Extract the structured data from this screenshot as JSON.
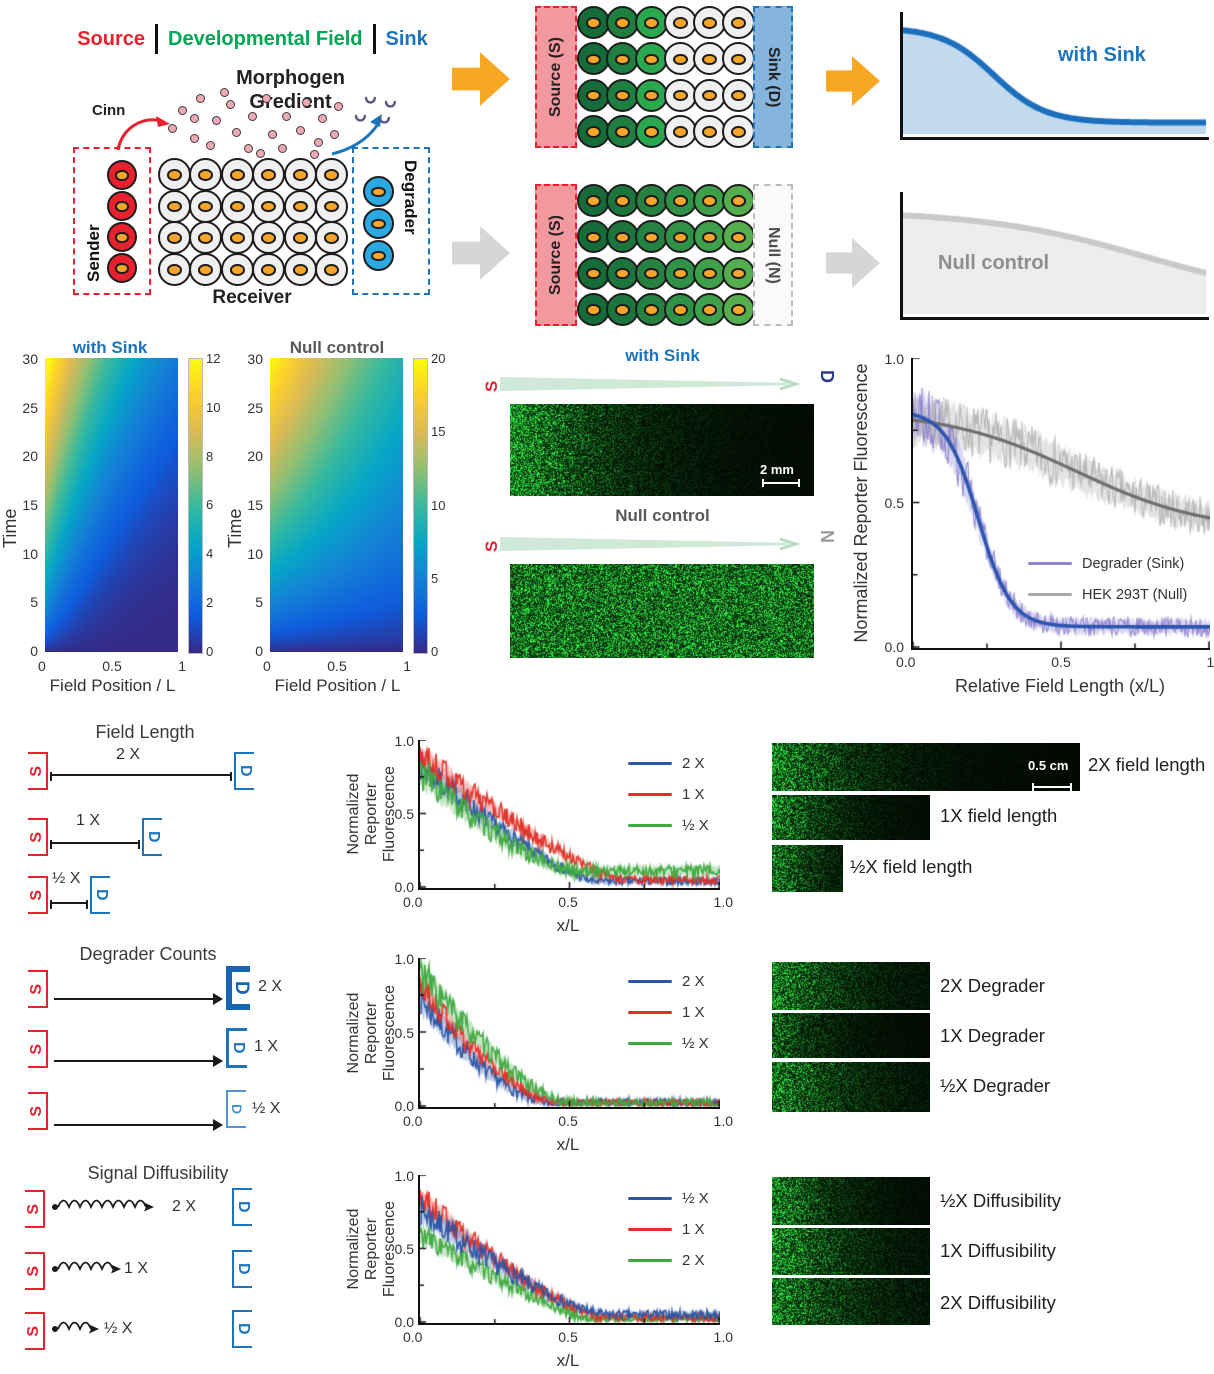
{
  "colors": {
    "source_red": "#e8212e",
    "field_green": "#00a651",
    "sink_blue": "#1c75bc",
    "navy_d": "#2b3a8f",
    "null_gray": "#97999b",
    "null_text": "#58595b",
    "yellow_arrow": "#f7a823",
    "gray_arrow": "#d6d6d6",
    "cell_gray": "#f0f0f1",
    "nucleus_orange": "#f6a62a",
    "degrader_cell_blue": "#29a8e1",
    "source_bar_pink": "#f2989f",
    "sink_bar_blue": "#85b4dc",
    "taper_green": "#cfe8d8",
    "grid1_columns": [
      "#166c39",
      "#1f7f41",
      "#2aa84e",
      "#f0f0f1",
      "#f0f0f1",
      "#f0f0f1"
    ],
    "grid2_columns": [
      "#166c39",
      "#1c753c",
      "#258240",
      "#2f9246",
      "#3fa04b",
      "#55ae4e"
    ],
    "parula": [
      "#352a87",
      "#0f5cdd",
      "#1481d6",
      "#06a7c6",
      "#38b99e",
      "#92bf73",
      "#d9ba56",
      "#fcce2e",
      "#f9fb0e"
    ]
  },
  "schematic": {
    "header": {
      "source": "Source",
      "divider": "|",
      "field": "Developmental Field",
      "sink": "Sink"
    },
    "morphogen_line1": "Morphogen",
    "morphogen_line2": "Gredient",
    "cinn": "Cinn",
    "sender": "Sender",
    "receiver": "Receiver",
    "degrader": "Degrader"
  },
  "grids": {
    "top_left": "Source (S)",
    "top_right": "Sink (D)",
    "bottom_left": "Source (S)",
    "bottom_right": "Null (N)"
  },
  "microscopy": {
    "top_title": "with Sink",
    "bottom_title": "Null control",
    "s": "S",
    "d": "D",
    "n": "N",
    "scalebar": "2 mm"
  },
  "chart_data": [
    {
      "id": "sketch-sink",
      "el": "cv-sketch1",
      "type": "line",
      "title": "with Sink",
      "color": "#1b6fbd",
      "fill": "#c3d9ee",
      "curve": {
        "kind": "sigmoid",
        "base": 0.05,
        "amp": 0.88,
        "mid": 0.3,
        "width": 0.085
      },
      "line_width": 6
    },
    {
      "id": "sketch-null",
      "el": "cv-sketch2",
      "type": "line",
      "title": "Null control",
      "color": "#c9c9c9",
      "fill": "#ededed",
      "curve": {
        "kind": "sigmoid",
        "base": 0.05,
        "amp": 0.85,
        "mid": 0.8,
        "width": 0.27
      },
      "line_width": 6
    },
    {
      "id": "heatmap-sink",
      "el": "cv-hm1",
      "cbar_el": "cv-cb1",
      "type": "heatmap",
      "title": "with Sink",
      "xlabel": "Field Position / L",
      "ylabel": "Time",
      "xticks": [
        "0",
        "0.5",
        "1"
      ],
      "yticks": [
        "0",
        "5",
        "10",
        "15",
        "20",
        "25",
        "30"
      ],
      "cbar_ticks": [
        "0",
        "2",
        "4",
        "6",
        "8",
        "10",
        "12"
      ],
      "xlim": [
        0,
        1
      ],
      "ylim": [
        0,
        30
      ],
      "clim": [
        0,
        12.5
      ],
      "model": {
        "kind": "sink",
        "umax": 13,
        "lam0": 0.16,
        "lam1": 0.5,
        "tpow": 0.7
      }
    },
    {
      "id": "heatmap-null",
      "el": "cv-hm2",
      "cbar_el": "cv-cb2",
      "type": "heatmap",
      "title": "Null control",
      "xlabel": "Field Position / L",
      "ylabel": "Time",
      "xticks": [
        "0",
        "0.5",
        "1"
      ],
      "yticks": [
        "0",
        "5",
        "10",
        "15",
        "20",
        "25",
        "30"
      ],
      "cbar_ticks": [
        "0",
        "5",
        "10",
        "15",
        "20"
      ],
      "xlim": [
        0,
        1
      ],
      "ylim": [
        0,
        30
      ],
      "clim": [
        0,
        20
      ],
      "model": {
        "kind": "null",
        "umax": 20,
        "dec": 0.8,
        "tpow": 0.75
      }
    },
    {
      "id": "main-plot",
      "el": "cv-main",
      "type": "line",
      "xlabel": "Relative Field Length (x/L)",
      "ylabel": "Normalized Reporter Fluorescence",
      "xticks": [
        "0.0",
        "0.5",
        "1.0"
      ],
      "yticks": [
        "1.0",
        "0.5",
        "0.0"
      ],
      "xlim": [
        0,
        1
      ],
      "ylim": [
        0,
        1
      ],
      "legend_position": "center-right",
      "series": [
        {
          "name": "HEK 293T (Null)",
          "color": "#6f6f6f",
          "trace_color": "#b5b5b5",
          "band_color": "#c8c8c8",
          "band_alpha": 0.5,
          "curve": {
            "kind": "sigmoid",
            "base": 0.4,
            "amp": 0.42,
            "mid": 0.55,
            "width": 0.22
          },
          "noise": 0.05,
          "band": 0.1,
          "line_width": 3.2
        },
        {
          "name": "Degrader (Sink)",
          "color": "#2c55b0",
          "trace_color": "#8d86cf",
          "band_color": "#a49ede",
          "band_alpha": 0.42,
          "curve": {
            "kind": "sigmoid",
            "base": 0.07,
            "amp": 0.75,
            "mid": 0.22,
            "width": 0.055
          },
          "noise": 0.055,
          "band": 0.11,
          "line_width": 3.6
        }
      ],
      "legend": [
        {
          "label": "Degrader (Sink)",
          "swatch": "#8d86cf"
        },
        {
          "label": "HEK 293T (Null)",
          "swatch": "#a9a9a9"
        }
      ]
    },
    {
      "id": "plot-field-length",
      "el": "cv-p1",
      "type": "line",
      "xlabel": "x/L",
      "ylabel_lines": [
        "Normalized",
        "Reporter",
        "Fluorescence"
      ],
      "xticks": [
        "0.0",
        "0.5",
        "1.0"
      ],
      "yticks": [
        "1.0",
        "0.5",
        "0.0"
      ],
      "xlim": [
        0,
        1
      ],
      "ylim": [
        0,
        1
      ],
      "series": [
        {
          "name": "2 X",
          "color": "#2b55a5",
          "curve": {
            "kind": "power",
            "floor": 0.04,
            "amp": 0.8,
            "x0": 0.58,
            "p": 1.3
          },
          "noise": 0.05,
          "band": 0.11
        },
        {
          "name": "1 X",
          "color": "#e03127",
          "curve": {
            "kind": "power",
            "floor": 0.05,
            "amp": 0.85,
            "x0": 0.66,
            "p": 1.2
          },
          "noise": 0.05,
          "band": 0.09
        },
        {
          "name": "½ X",
          "color": "#3faa3f",
          "curve": {
            "kind": "power",
            "floor": 0.11,
            "amp": 0.68,
            "x0": 0.52,
            "p": 1.5
          },
          "noise": 0.06,
          "band": 0.13
        }
      ]
    },
    {
      "id": "plot-degrader-counts",
      "el": "cv-p2",
      "type": "line",
      "xlabel": "x/L",
      "ylabel_lines": [
        "Normalized",
        "Reporter",
        "Fluorescence"
      ],
      "xticks": [
        "0.0",
        "0.5",
        "1.0"
      ],
      "yticks": [
        "1.0",
        "0.5",
        "0.0"
      ],
      "xlim": [
        0,
        1
      ],
      "ylim": [
        0,
        1
      ],
      "series": [
        {
          "name": "2 X",
          "color": "#2b55a5",
          "curve": {
            "kind": "power",
            "floor": 0.02,
            "amp": 0.72,
            "x0": 0.44,
            "p": 1.7
          },
          "noise": 0.06,
          "band": 0.14
        },
        {
          "name": "1 X",
          "color": "#e03127",
          "curve": {
            "kind": "power",
            "floor": 0.02,
            "amp": 0.8,
            "x0": 0.47,
            "p": 1.6
          },
          "noise": 0.05,
          "band": 0.09
        },
        {
          "name": "½ X",
          "color": "#3faa3f",
          "curve": {
            "kind": "power",
            "floor": 0.02,
            "amp": 0.9,
            "x0": 0.5,
            "p": 1.5
          },
          "noise": 0.06,
          "band": 0.12
        }
      ]
    },
    {
      "id": "plot-diffusibility",
      "el": "cv-p3",
      "type": "line",
      "xlabel": "x/L",
      "ylabel_lines": [
        "Normalized",
        "Reporter",
        "Fluorescence"
      ],
      "xticks": [
        "0.0",
        "0.5",
        "1.0"
      ],
      "yticks": [
        "1.0",
        "0.5",
        "0.0"
      ],
      "xlim": [
        0,
        1
      ],
      "ylim": [
        0,
        1
      ],
      "draw_order": [
        2,
        1,
        0
      ],
      "series": [
        {
          "name": "½ X",
          "color": "#2b55a5",
          "curve": {
            "kind": "power",
            "floor": 0.05,
            "amp": 0.72,
            "x0": 0.62,
            "p": 1.4
          },
          "noise": 0.055,
          "band": 0.12
        },
        {
          "name": "1 X",
          "color": "#e03127",
          "curve": {
            "kind": "power",
            "floor": 0.03,
            "amp": 0.82,
            "x0": 0.6,
            "p": 1.3
          },
          "noise": 0.05,
          "band": 0.09
        },
        {
          "name": "2 X",
          "color": "#3faa3f",
          "curve": {
            "kind": "power",
            "floor": 0.02,
            "amp": 0.58,
            "x0": 0.56,
            "p": 1.2
          },
          "noise": 0.055,
          "band": 0.1
        }
      ]
    }
  ],
  "experiments": [
    {
      "title": "Field Length",
      "rows": [
        {
          "label": "2 X"
        },
        {
          "label": "1 X"
        },
        {
          "label": "½ X"
        }
      ],
      "images": [
        {
          "label": "2X field length",
          "scalebar": "0.5 cm"
        },
        {
          "label": "1X field length"
        },
        {
          "label": "½X field length"
        }
      ]
    },
    {
      "title": "Degrader Counts",
      "rows": [
        {
          "label": "2 X"
        },
        {
          "label": "1 X"
        },
        {
          "label": "½ X"
        }
      ],
      "images": [
        {
          "label": "2X Degrader"
        },
        {
          "label": "1X Degrader"
        },
        {
          "label": "½X Degrader"
        }
      ]
    },
    {
      "title": "Signal Diffusibility",
      "rows": [
        {
          "label": "2 X"
        },
        {
          "label": "1 X"
        },
        {
          "label": "½ X"
        }
      ],
      "images": [
        {
          "label": "½X Diffusibility"
        },
        {
          "label": "1X Diffusibility"
        },
        {
          "label": "2X Diffusibility"
        }
      ]
    }
  ],
  "noise_images": [
    {
      "el": "cv-mic1",
      "profile": "decay",
      "lam": 0.26,
      "gain": 1.0,
      "seed": 11
    },
    {
      "el": "cv-mic2",
      "profile": "flat",
      "level": 0.72,
      "gain": 1.0,
      "seed": 12
    },
    {
      "el": "cv-f1",
      "profile": "decay",
      "lam": 0.22,
      "gain": 0.9,
      "seed": 21,
      "grid": true
    },
    {
      "el": "cv-f2",
      "profile": "decay",
      "lam": 0.3,
      "gain": 0.85,
      "seed": 22
    },
    {
      "el": "cv-f3",
      "profile": "decay",
      "lam": 0.55,
      "gain": 0.8,
      "seed": 23,
      "grid": true
    },
    {
      "el": "cv-g1",
      "profile": "decay",
      "lam": 0.4,
      "gain": 0.85,
      "seed": 31
    },
    {
      "el": "cv-g2",
      "profile": "decay",
      "lam": 0.3,
      "gain": 0.6,
      "seed": 32
    },
    {
      "el": "cv-g3",
      "profile": "decay",
      "lam": 0.42,
      "gain": 0.8,
      "seed": 33
    },
    {
      "el": "cv-h1",
      "profile": "decay",
      "lam": 0.3,
      "gain": 0.9,
      "seed": 41
    },
    {
      "el": "cv-h2",
      "profile": "decay",
      "lam": 0.38,
      "gain": 0.95,
      "seed": 42,
      "grid": true
    },
    {
      "el": "cv-h3",
      "profile": "decay",
      "lam": 0.45,
      "gain": 0.8,
      "seed": 43,
      "grid": true
    }
  ]
}
